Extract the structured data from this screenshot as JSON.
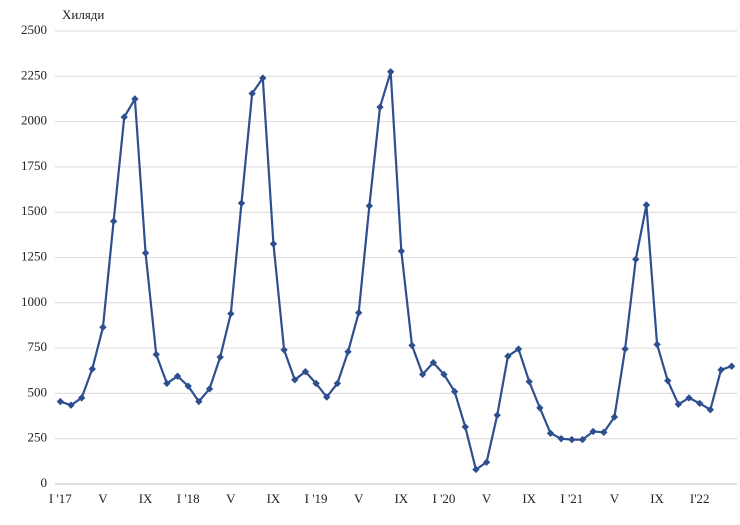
{
  "chart_data": {
    "type": "line",
    "y_label": "Хиляди",
    "categories": [
      "I '17",
      null,
      null,
      null,
      "V",
      null,
      null,
      null,
      "IX",
      null,
      null,
      null,
      "I '18",
      null,
      null,
      null,
      "V",
      null,
      null,
      null,
      "IX",
      null,
      null,
      null,
      "I '19",
      null,
      null,
      null,
      "V",
      null,
      null,
      null,
      "IX",
      null,
      null,
      null,
      "I '20",
      null,
      null,
      null,
      "V",
      null,
      null,
      null,
      "IX",
      null,
      null,
      null,
      "I '21",
      null,
      null,
      null,
      "V",
      null,
      null,
      null,
      "IX",
      null,
      null,
      null,
      "I'22",
      null,
      null,
      null
    ],
    "series": [
      {
        "name": "Хиляди",
        "color": "#2e4f8f",
        "values": [
          455,
          435,
          475,
          635,
          865,
          1450,
          2025,
          2125,
          1275,
          715,
          555,
          595,
          540,
          455,
          525,
          700,
          940,
          1550,
          2155,
          2240,
          1325,
          740,
          575,
          620,
          555,
          480,
          555,
          730,
          945,
          1535,
          2080,
          2275,
          1285,
          765,
          605,
          670,
          605,
          510,
          315,
          80,
          120,
          380,
          705,
          745,
          565,
          420,
          280,
          250,
          245,
          245,
          290,
          285,
          370,
          745,
          1240,
          1540,
          770,
          570,
          440,
          475,
          445,
          410,
          630,
          650
        ]
      }
    ],
    "ylim": [
      0,
      2500
    ],
    "yticks": [
      0,
      250,
      500,
      750,
      1000,
      1250,
      1500,
      1750,
      2000,
      2250,
      2500
    ],
    "grid": true
  }
}
